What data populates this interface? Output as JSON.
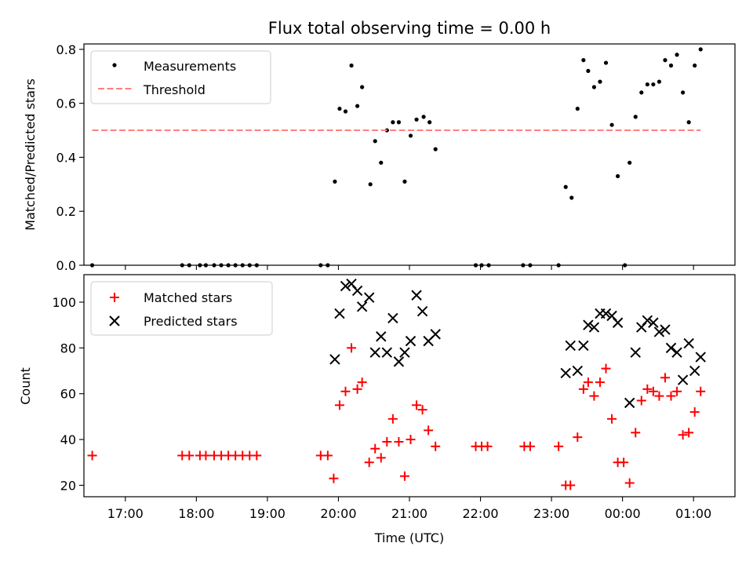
{
  "chart_data": [
    {
      "type": "scatter",
      "title": "Flux total observing time = 0.00 h",
      "xlabel": "",
      "ylabel": "Matched/Predicted stars",
      "xlim": [
        "16:25",
        "01:35"
      ],
      "ylim": [
        0,
        0.82
      ],
      "y_ticks": [
        0.0,
        0.2,
        0.4,
        0.6,
        0.8
      ],
      "y_tick_labels": [
        "0.0",
        "0.2",
        "0.4",
        "0.6",
        "0.8"
      ],
      "legend_position": "top-left",
      "series": [
        {
          "name": "Measurements",
          "marker": "dot",
          "color": "#000000",
          "points": [
            [
              "16:32",
              0.0
            ],
            [
              "17:48",
              0.0
            ],
            [
              "17:54",
              0.0
            ],
            [
              "18:03",
              0.0
            ],
            [
              "18:08",
              0.0
            ],
            [
              "18:15",
              0.0
            ],
            [
              "18:21",
              0.0
            ],
            [
              "18:27",
              0.0
            ],
            [
              "18:33",
              0.0
            ],
            [
              "18:39",
              0.0
            ],
            [
              "18:45",
              0.0
            ],
            [
              "18:51",
              0.0
            ],
            [
              "19:45",
              0.0
            ],
            [
              "19:51",
              0.0
            ],
            [
              "19:57",
              0.31
            ],
            [
              "20:01",
              0.58
            ],
            [
              "20:06",
              0.57
            ],
            [
              "20:11",
              0.74
            ],
            [
              "20:16",
              0.59
            ],
            [
              "20:20",
              0.66
            ],
            [
              "20:27",
              0.3
            ],
            [
              "20:31",
              0.46
            ],
            [
              "20:36",
              0.38
            ],
            [
              "20:41",
              0.5
            ],
            [
              "20:46",
              0.53
            ],
            [
              "20:51",
              0.53
            ],
            [
              "20:56",
              0.31
            ],
            [
              "21:01",
              0.48
            ],
            [
              "21:06",
              0.54
            ],
            [
              "21:12",
              0.55
            ],
            [
              "21:17",
              0.53
            ],
            [
              "21:22",
              0.43
            ],
            [
              "21:56",
              0.0
            ],
            [
              "22:01",
              0.0
            ],
            [
              "22:07",
              0.0
            ],
            [
              "22:36",
              0.0
            ],
            [
              "22:42",
              0.0
            ],
            [
              "23:06",
              0.0
            ],
            [
              "23:12",
              0.29
            ],
            [
              "23:17",
              0.25
            ],
            [
              "23:22",
              0.58
            ],
            [
              "23:27",
              0.76
            ],
            [
              "23:31",
              0.72
            ],
            [
              "23:36",
              0.66
            ],
            [
              "23:41",
              0.68
            ],
            [
              "23:46",
              0.75
            ],
            [
              "23:51",
              0.52
            ],
            [
              "23:56",
              0.33
            ],
            [
              "00:02",
              0.0
            ],
            [
              "00:06",
              0.38
            ],
            [
              "00:11",
              0.55
            ],
            [
              "00:16",
              0.64
            ],
            [
              "00:21",
              0.67
            ],
            [
              "00:26",
              0.67
            ],
            [
              "00:31",
              0.68
            ],
            [
              "00:36",
              0.76
            ],
            [
              "00:41",
              0.74
            ],
            [
              "00:46",
              0.78
            ],
            [
              "00:51",
              0.64
            ],
            [
              "00:56",
              0.53
            ],
            [
              "01:01",
              0.74
            ],
            [
              "01:06",
              0.8
            ]
          ]
        },
        {
          "name": "Threshold",
          "marker": "dashed-line",
          "color": "#ff7f7f",
          "points": [
            [
              "16:32",
              0.5
            ],
            [
              "01:06",
              0.5
            ]
          ]
        }
      ]
    },
    {
      "type": "scatter",
      "title": "",
      "xlabel": "Time (UTC)",
      "ylabel": "Count",
      "xlim": [
        "16:25",
        "01:35"
      ],
      "ylim": [
        15,
        112
      ],
      "y_ticks": [
        20,
        40,
        60,
        80,
        100
      ],
      "y_tick_labels": [
        "20",
        "40",
        "60",
        "80",
        "100"
      ],
      "x_ticks": [
        "17:00",
        "18:00",
        "19:00",
        "20:00",
        "21:00",
        "22:00",
        "23:00",
        "00:00",
        "01:00"
      ],
      "x_tick_labels": [
        "17:00",
        "18:00",
        "19:00",
        "20:00",
        "21:00",
        "22:00",
        "23:00",
        "00:00",
        "01:00"
      ],
      "legend_position": "top-left",
      "series": [
        {
          "name": "Matched stars",
          "marker": "plus",
          "color": "#ff0000",
          "points": [
            [
              "16:32",
              33
            ],
            [
              "17:48",
              33
            ],
            [
              "17:54",
              33
            ],
            [
              "18:03",
              33
            ],
            [
              "18:08",
              33
            ],
            [
              "18:15",
              33
            ],
            [
              "18:21",
              33
            ],
            [
              "18:27",
              33
            ],
            [
              "18:33",
              33
            ],
            [
              "18:39",
              33
            ],
            [
              "18:45",
              33
            ],
            [
              "18:51",
              33
            ],
            [
              "19:45",
              33
            ],
            [
              "19:51",
              33
            ],
            [
              "19:56",
              23
            ],
            [
              "20:01",
              55
            ],
            [
              "20:06",
              61
            ],
            [
              "20:11",
              80
            ],
            [
              "20:16",
              62
            ],
            [
              "20:20",
              65
            ],
            [
              "20:26",
              30
            ],
            [
              "20:31",
              36
            ],
            [
              "20:36",
              32
            ],
            [
              "20:41",
              39
            ],
            [
              "20:46",
              49
            ],
            [
              "20:51",
              39
            ],
            [
              "20:56",
              24
            ],
            [
              "21:01",
              40
            ],
            [
              "21:06",
              55
            ],
            [
              "21:11",
              53
            ],
            [
              "21:16",
              44
            ],
            [
              "21:22",
              37
            ],
            [
              "21:56",
              37
            ],
            [
              "22:01",
              37
            ],
            [
              "22:06",
              37
            ],
            [
              "22:37",
              37
            ],
            [
              "22:42",
              37
            ],
            [
              "23:06",
              37
            ],
            [
              "23:12",
              20
            ],
            [
              "23:16",
              20
            ],
            [
              "23:22",
              41
            ],
            [
              "23:27",
              62
            ],
            [
              "23:31",
              65
            ],
            [
              "23:36",
              59
            ],
            [
              "23:41",
              65
            ],
            [
              "23:46",
              71
            ],
            [
              "23:51",
              49
            ],
            [
              "23:56",
              30
            ],
            [
              "00:01",
              30
            ],
            [
              "00:06",
              21
            ],
            [
              "00:11",
              43
            ],
            [
              "00:16",
              57
            ],
            [
              "00:21",
              62
            ],
            [
              "00:26",
              61
            ],
            [
              "00:31",
              59
            ],
            [
              "00:36",
              67
            ],
            [
              "00:41",
              59
            ],
            [
              "00:46",
              61
            ],
            [
              "00:51",
              42
            ],
            [
              "00:56",
              43
            ],
            [
              "01:01",
              52
            ],
            [
              "01:06",
              61
            ]
          ]
        },
        {
          "name": "Predicted stars",
          "marker": "x",
          "color": "#000000",
          "points": [
            [
              "19:57",
              75
            ],
            [
              "20:01",
              95
            ],
            [
              "20:06",
              107
            ],
            [
              "20:11",
              108
            ],
            [
              "20:16",
              105
            ],
            [
              "20:20",
              98
            ],
            [
              "20:26",
              102
            ],
            [
              "20:31",
              78
            ],
            [
              "20:36",
              85
            ],
            [
              "20:41",
              78
            ],
            [
              "20:46",
              93
            ],
            [
              "20:51",
              74
            ],
            [
              "20:56",
              78
            ],
            [
              "21:01",
              83
            ],
            [
              "21:06",
              103
            ],
            [
              "21:11",
              96
            ],
            [
              "21:16",
              83
            ],
            [
              "21:22",
              86
            ],
            [
              "23:12",
              69
            ],
            [
              "23:16",
              81
            ],
            [
              "23:22",
              70
            ],
            [
              "23:27",
              81
            ],
            [
              "23:31",
              90
            ],
            [
              "23:36",
              89
            ],
            [
              "23:41",
              95
            ],
            [
              "23:46",
              95
            ],
            [
              "23:51",
              94
            ],
            [
              "23:56",
              91
            ],
            [
              "00:06",
              56
            ],
            [
              "00:11",
              78
            ],
            [
              "00:16",
              89
            ],
            [
              "00:21",
              92
            ],
            [
              "00:26",
              91
            ],
            [
              "00:31",
              87
            ],
            [
              "00:36",
              88
            ],
            [
              "00:41",
              80
            ],
            [
              "00:46",
              78
            ],
            [
              "00:51",
              66
            ],
            [
              "00:56",
              82
            ],
            [
              "01:01",
              70
            ],
            [
              "01:06",
              76
            ]
          ]
        }
      ]
    }
  ]
}
